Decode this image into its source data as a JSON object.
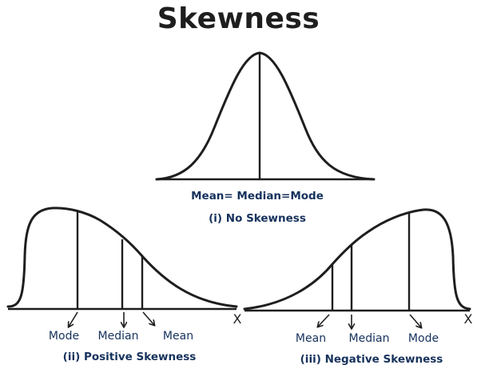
{
  "title": "Skewness",
  "panels": {
    "none": {
      "equation_label": "Mean=  Median=Mode",
      "caption": "(i) No Skewness"
    },
    "positive": {
      "labels": [
        "Mode",
        "Median",
        "Mean"
      ],
      "axis_label": "X",
      "caption": "(ii) Positive Skewness"
    },
    "negative": {
      "labels": [
        "Mean",
        "Median",
        "Mode"
      ],
      "axis_label": "X",
      "caption": "(iii) Negative Skewness"
    }
  }
}
